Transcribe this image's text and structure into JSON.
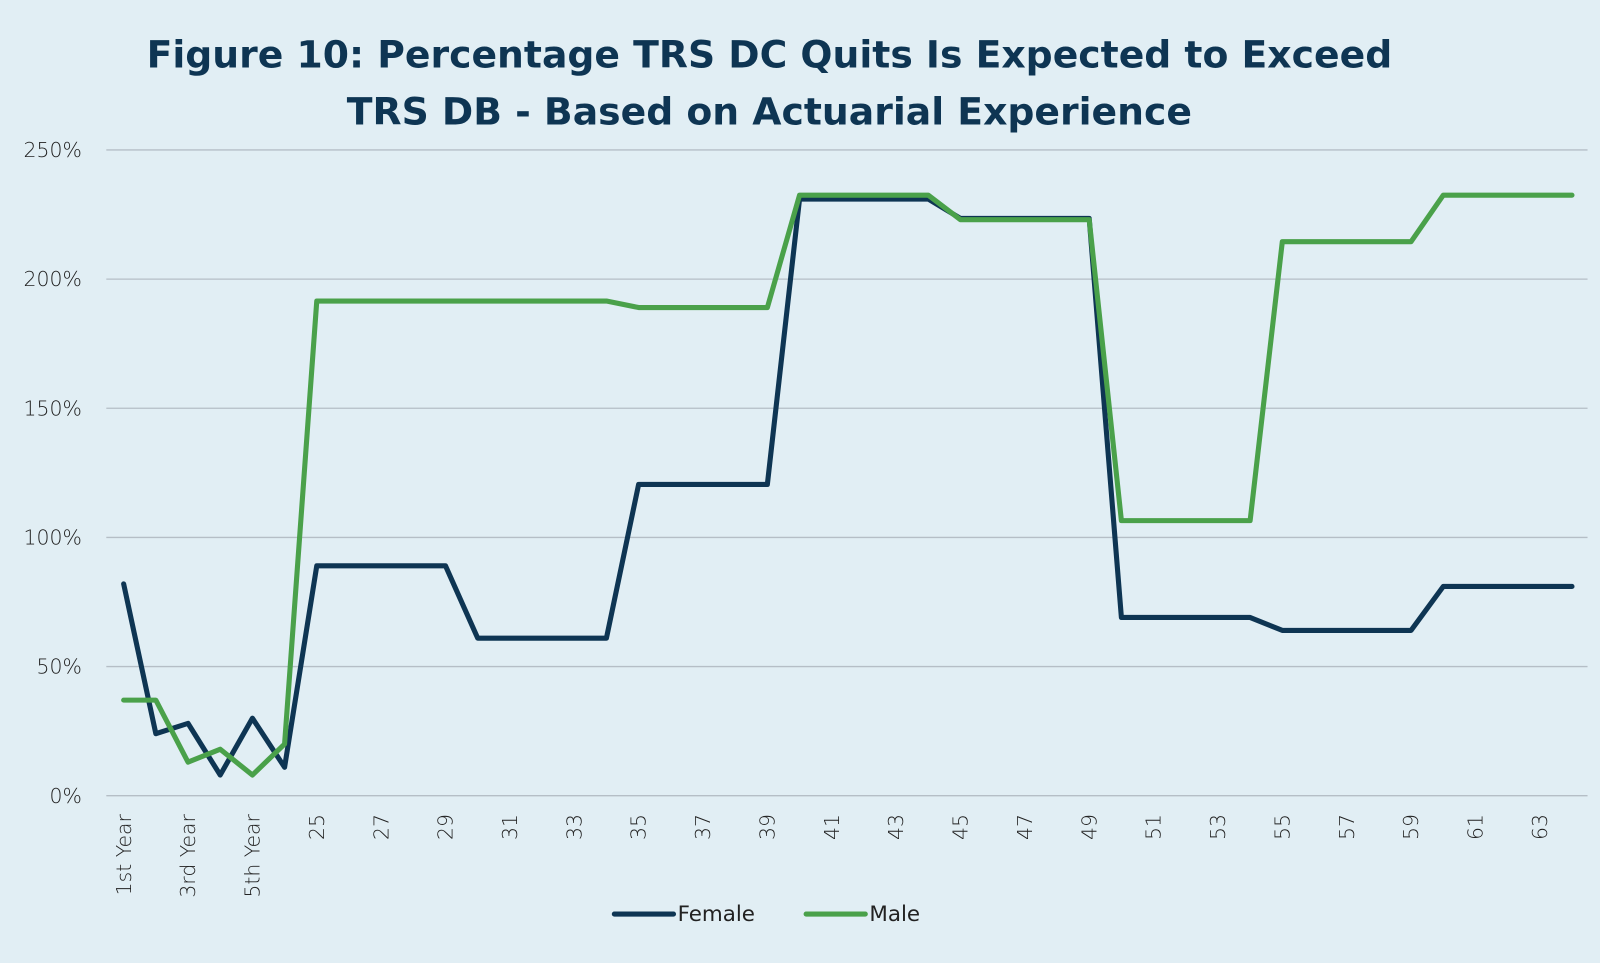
{
  "chart_data": {
    "type": "line",
    "title_bold": "Figure 10:",
    "title_line1": "Percentage TRS DC Quits Is Expected to Exceed",
    "title_line2": "TRS DB - Based on Actuarial Experience",
    "xlabel": "",
    "ylabel": "",
    "ylim": [
      0,
      250
    ],
    "yticks": [
      0,
      50,
      100,
      150,
      200,
      250
    ],
    "ytick_labels": [
      "0%",
      "50%",
      "100%",
      "150%",
      "200%",
      "250%"
    ],
    "grid": "horizontal",
    "legend_position": "bottom",
    "categories": [
      "1st Year",
      "2nd Year",
      "3rd Year",
      "4th Year",
      "5th Year",
      "24",
      "25",
      "26",
      "27",
      "28",
      "29",
      "30",
      "31",
      "32",
      "33",
      "34",
      "35",
      "36",
      "37",
      "38",
      "39",
      "40",
      "41",
      "42",
      "43",
      "44",
      "45",
      "46",
      "47",
      "48",
      "49",
      "50",
      "51",
      "52",
      "53",
      "54",
      "55",
      "56",
      "57",
      "58",
      "59",
      "60",
      "61",
      "62",
      "63",
      "64"
    ],
    "label_every": 2,
    "series": [
      {
        "name": "Female",
        "color": "#0e3553",
        "values": [
          82,
          24,
          28,
          8,
          30,
          11,
          89,
          89,
          89,
          89,
          89,
          61,
          61,
          61,
          61,
          61,
          120.5,
          120.5,
          120.5,
          120.5,
          120.5,
          231,
          231,
          231,
          231,
          231,
          223.5,
          223.5,
          223.5,
          223.5,
          223.5,
          69,
          69,
          69,
          69,
          69,
          64,
          64,
          64,
          64,
          64,
          81,
          81,
          81,
          81,
          81
        ]
      },
      {
        "name": "Male",
        "color": "#4aa14a",
        "values": [
          37,
          37,
          13,
          18,
          8,
          20,
          191.5,
          191.5,
          191.5,
          191.5,
          191.5,
          191.5,
          191.5,
          191.5,
          191.5,
          191.5,
          189,
          189,
          189,
          189,
          189,
          232.5,
          232.5,
          232.5,
          232.5,
          232.5,
          223,
          223,
          223,
          223,
          223,
          106.5,
          106.5,
          106.5,
          106.5,
          106.5,
          214.5,
          214.5,
          214.5,
          214.5,
          214.5,
          232.5,
          232.5,
          232.5,
          232.5,
          232.5
        ]
      }
    ]
  }
}
